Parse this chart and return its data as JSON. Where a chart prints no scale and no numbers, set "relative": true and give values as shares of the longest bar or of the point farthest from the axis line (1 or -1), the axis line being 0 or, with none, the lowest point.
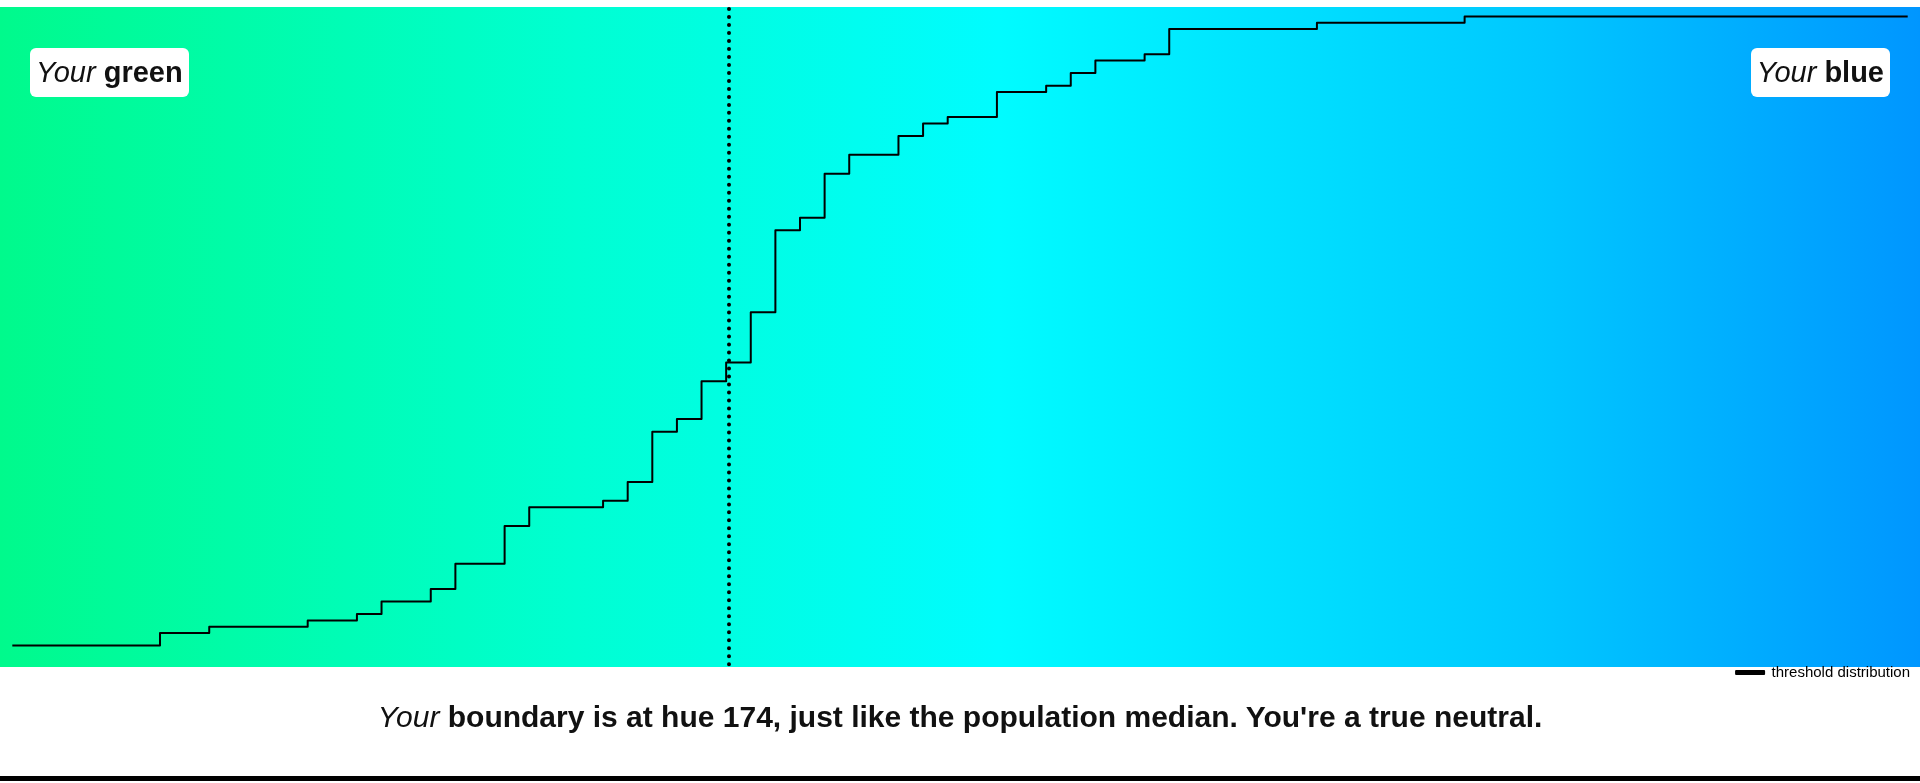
{
  "chart_data": {
    "type": "step",
    "relative": true,
    "categories": [
      null,
      null,
      null,
      null,
      null,
      null,
      null,
      null,
      null,
      null,
      null,
      null,
      null,
      null,
      null,
      null,
      null,
      null,
      null,
      null,
      null,
      null,
      null,
      null,
      null,
      null,
      null,
      null,
      null,
      null,
      null,
      null,
      null,
      null,
      null,
      null,
      null,
      null,
      null,
      null,
      null,
      null,
      null,
      null,
      null,
      null,
      null,
      null,
      null,
      null,
      null,
      null,
      null,
      null,
      null,
      null,
      null,
      null,
      null,
      null,
      null,
      null,
      null,
      null,
      null,
      null,
      null,
      null,
      null,
      null,
      null,
      null,
      null,
      null,
      null,
      null,
      null,
      null
    ],
    "series": [
      {
        "name": "threshold distribution",
        "color": "#000000",
        "values": [
          0,
          0,
          0,
          0,
          0,
          0,
          0.02,
          0.02,
          0.03,
          0.03,
          0.03,
          0.03,
          0.04,
          0.04,
          0.05,
          0.07,
          0.07,
          0.09,
          0.13,
          0.13,
          0.19,
          0.22,
          0.22,
          0.22,
          0.23,
          0.26,
          0.34,
          0.36,
          0.42,
          0.45,
          0.53,
          0.66,
          0.68,
          0.75,
          0.78,
          0.78,
          0.81,
          0.83,
          0.84,
          0.84,
          0.88,
          0.88,
          0.89,
          0.91,
          0.93,
          0.93,
          0.94,
          0.98,
          0.98,
          0.98,
          0.98,
          0.98,
          0.98,
          0.99,
          0.99,
          0.99,
          0.99,
          0.99,
          0.99,
          1,
          1,
          1,
          1,
          1,
          1,
          1,
          1,
          1,
          1,
          1,
          1,
          1,
          1,
          1,
          1,
          1,
          1,
          1
        ]
      }
    ],
    "annotations": [
      "Your green",
      "Your blue",
      "Your boundary is at hue 174, just like the population median. You're a true neutral."
    ],
    "legend": "bottom right",
    "tick_labels": false
  }
}
